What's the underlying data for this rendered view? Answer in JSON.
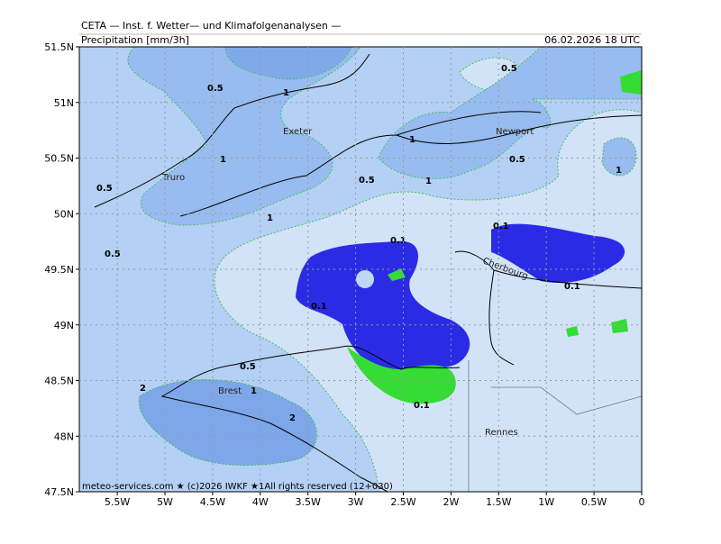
{
  "header": {
    "source": "CETA — Inst. f. Wetter— und Klimafolgenanalysen —",
    "product": "Precipitation [mm/3h]",
    "valid": "06.02.2026 18 UTC"
  },
  "lat_labels": [
    "51.5N",
    "51N",
    "50.5N",
    "50N",
    "49.5N",
    "49N",
    "48.5N",
    "48N",
    "47.5N"
  ],
  "lon_labels": [
    "5.5W",
    "5W",
    "4.5W",
    "4W",
    "3.5W",
    "3W",
    "2.5W",
    "2W",
    "1.5W",
    "1W",
    "0.5W",
    "0"
  ],
  "places": [
    "Exeter",
    "Truro",
    "Newport",
    "Cherbourg",
    "Brest",
    "Rennes"
  ],
  "contour_labels": [
    "0.5",
    "1",
    "0.5",
    "1",
    "1",
    "0.5",
    "1",
    "0.5",
    "1",
    "1",
    "0.5",
    "0.5",
    "0.1",
    "0.1",
    "0.1",
    "0.1",
    "0.1",
    "0.5",
    "1",
    "2",
    "2"
  ],
  "footer": "meteo-services.com ★ (c)2026 IWKF ★1All rights reserved (12+030)"
}
